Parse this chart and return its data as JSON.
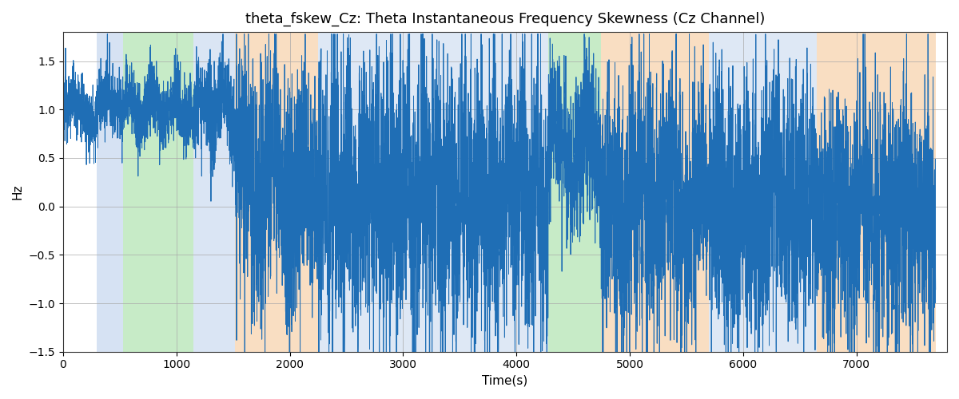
{
  "title": "theta_fskew_Cz: Theta Instantaneous Frequency Skewness (Cz Channel)",
  "xlabel": "Time(s)",
  "ylabel": "Hz",
  "ylim": [
    -1.5,
    1.8
  ],
  "yticks": [
    -1.5,
    -1.0,
    -0.5,
    0.0,
    0.5,
    1.0,
    1.5
  ],
  "xlim": [
    0,
    7800
  ],
  "xticks": [
    0,
    1000,
    2000,
    3000,
    4000,
    5000,
    6000,
    7000
  ],
  "line_color": "#1f6eb5",
  "line_width": 0.7,
  "bg_color": "#ffffff",
  "grid_color": "#aaaaaa",
  "title_fontsize": 13,
  "label_fontsize": 11,
  "seed": 12345,
  "n_points": 7700,
  "colored_regions": [
    {
      "xmin": 300,
      "xmax": 530,
      "color": "#aec6e8",
      "alpha": 0.5
    },
    {
      "xmin": 530,
      "xmax": 1150,
      "color": "#90d890",
      "alpha": 0.5
    },
    {
      "xmin": 1150,
      "xmax": 1520,
      "color": "#aec6e8",
      "alpha": 0.45
    },
    {
      "xmin": 1520,
      "xmax": 2250,
      "color": "#f5c89a",
      "alpha": 0.6
    },
    {
      "xmin": 2250,
      "xmax": 4100,
      "color": "#aec6e8",
      "alpha": 0.4
    },
    {
      "xmin": 4100,
      "xmax": 4200,
      "color": "#aec6e8",
      "alpha": 0.4
    },
    {
      "xmin": 4200,
      "xmax": 4280,
      "color": "#aec6e8",
      "alpha": 0.4
    },
    {
      "xmin": 4280,
      "xmax": 4750,
      "color": "#90d890",
      "alpha": 0.5
    },
    {
      "xmin": 4750,
      "xmax": 5700,
      "color": "#f5c89a",
      "alpha": 0.6
    },
    {
      "xmin": 5700,
      "xmax": 6650,
      "color": "#aec6e8",
      "alpha": 0.4
    },
    {
      "xmin": 6650,
      "xmax": 7700,
      "color": "#f5c89a",
      "alpha": 0.6
    }
  ],
  "segments": [
    {
      "t_start": 0,
      "t_end": 300,
      "mean": 1.0,
      "std": 0.18,
      "freq": 0.08,
      "amp_osc": 0.12
    },
    {
      "t_start": 300,
      "t_end": 530,
      "mean": 1.0,
      "std": 0.18,
      "freq": 0.08,
      "amp_osc": 0.12
    },
    {
      "t_start": 530,
      "t_end": 1150,
      "mean": 1.0,
      "std": 0.2,
      "freq": 0.06,
      "amp_osc": 0.15
    },
    {
      "t_start": 1150,
      "t_end": 1520,
      "mean": 1.0,
      "std": 0.25,
      "freq": 0.1,
      "amp_osc": 0.2
    },
    {
      "t_start": 1520,
      "t_end": 2250,
      "mean": 0.25,
      "std": 0.65,
      "freq": 0.04,
      "amp_osc": 0.3
    },
    {
      "t_start": 2250,
      "t_end": 4280,
      "mean": 0.1,
      "std": 0.75,
      "freq": 0.03,
      "amp_osc": 0.2
    },
    {
      "t_start": 4280,
      "t_end": 4750,
      "mean": 0.6,
      "std": 0.45,
      "freq": 0.06,
      "amp_osc": 0.2
    },
    {
      "t_start": 4750,
      "t_end": 5700,
      "mean": 0.0,
      "std": 0.7,
      "freq": 0.03,
      "amp_osc": 0.2
    },
    {
      "t_start": 5700,
      "t_end": 6650,
      "mean": 0.0,
      "std": 0.7,
      "freq": 0.03,
      "amp_osc": 0.15
    },
    {
      "t_start": 6650,
      "t_end": 7700,
      "mean": -0.1,
      "std": 0.65,
      "freq": 0.04,
      "amp_osc": 0.2
    }
  ]
}
